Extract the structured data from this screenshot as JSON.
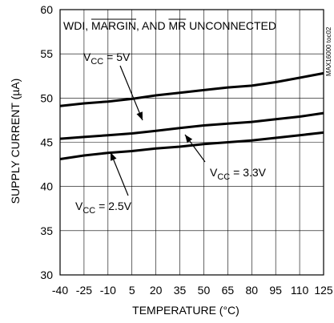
{
  "chart_data": {
    "type": "line",
    "title": "",
    "xlabel": "TEMPERATURE (°C)",
    "ylabel": "SUPPLY CURRENT (µA)",
    "xlim": [
      -40,
      125
    ],
    "ylim": [
      30,
      60
    ],
    "x_ticks": [
      -40,
      -25,
      -10,
      5,
      20,
      35,
      50,
      65,
      80,
      95,
      110,
      125
    ],
    "y_ticks": [
      30,
      35,
      40,
      45,
      50,
      55,
      60
    ],
    "grid": true,
    "series": [
      {
        "name": "VCC = 5V",
        "x": [
          -40,
          -25,
          -10,
          5,
          20,
          35,
          50,
          65,
          80,
          95,
          110,
          125
        ],
        "y": [
          49.1,
          49.4,
          49.6,
          49.9,
          50.3,
          50.6,
          50.9,
          51.2,
          51.4,
          51.8,
          52.3,
          52.8
        ]
      },
      {
        "name": "VCC = 3.3V",
        "x": [
          -40,
          -25,
          -10,
          5,
          20,
          35,
          50,
          65,
          80,
          95,
          110,
          125
        ],
        "y": [
          45.4,
          45.6,
          45.8,
          46.0,
          46.3,
          46.6,
          46.9,
          47.1,
          47.3,
          47.6,
          47.9,
          48.3
        ]
      },
      {
        "name": "VCC = 2.5V",
        "x": [
          -40,
          -25,
          -10,
          5,
          20,
          35,
          50,
          65,
          80,
          95,
          110,
          125
        ],
        "y": [
          43.1,
          43.5,
          43.8,
          44.0,
          44.3,
          44.5,
          44.8,
          45.0,
          45.2,
          45.5,
          45.8,
          46.1
        ]
      }
    ],
    "annotations": {
      "condition": "WDI, MARGIN, AND MR UNCONNECTED",
      "labels": [
        {
          "prefix": "V",
          "sub": "CC",
          "suffix": " = 5V",
          "series": 0
        },
        {
          "prefix": "V",
          "sub": "CC",
          "suffix": " = 3.3V",
          "series": 1
        },
        {
          "prefix": "V",
          "sub": "CC",
          "suffix": " = 2.5V",
          "series": 2
        }
      ]
    },
    "figure_id": "MAX16000 toc02"
  }
}
